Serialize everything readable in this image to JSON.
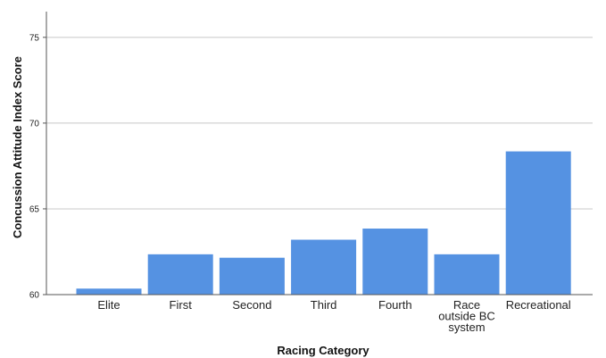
{
  "chart_data": {
    "type": "bar",
    "title": "",
    "xlabel": "Racing Category",
    "ylabel": "Concussion Attitude Index Score",
    "categories": [
      "Elite",
      "First",
      "Second",
      "Third",
      "Fourth",
      "Race outside BC system",
      "Recreational"
    ],
    "category_lines": [
      [
        "Elite"
      ],
      [
        "First"
      ],
      [
        "Second"
      ],
      [
        "Third"
      ],
      [
        "Fourth"
      ],
      [
        "Race",
        "outside BC",
        "system"
      ],
      [
        "Recreational"
      ]
    ],
    "values": [
      60.35,
      62.35,
      62.15,
      63.2,
      63.85,
      62.35,
      68.35
    ],
    "ylim": [
      60,
      76.5
    ],
    "yticks": [
      60,
      65,
      70,
      75
    ],
    "ytick_labels": [
      "60",
      "65",
      "70",
      "75"
    ],
    "grid": true,
    "colors": {
      "bar": "#5592e2",
      "grid": "#c8c8c8",
      "axis": "#555555"
    }
  }
}
